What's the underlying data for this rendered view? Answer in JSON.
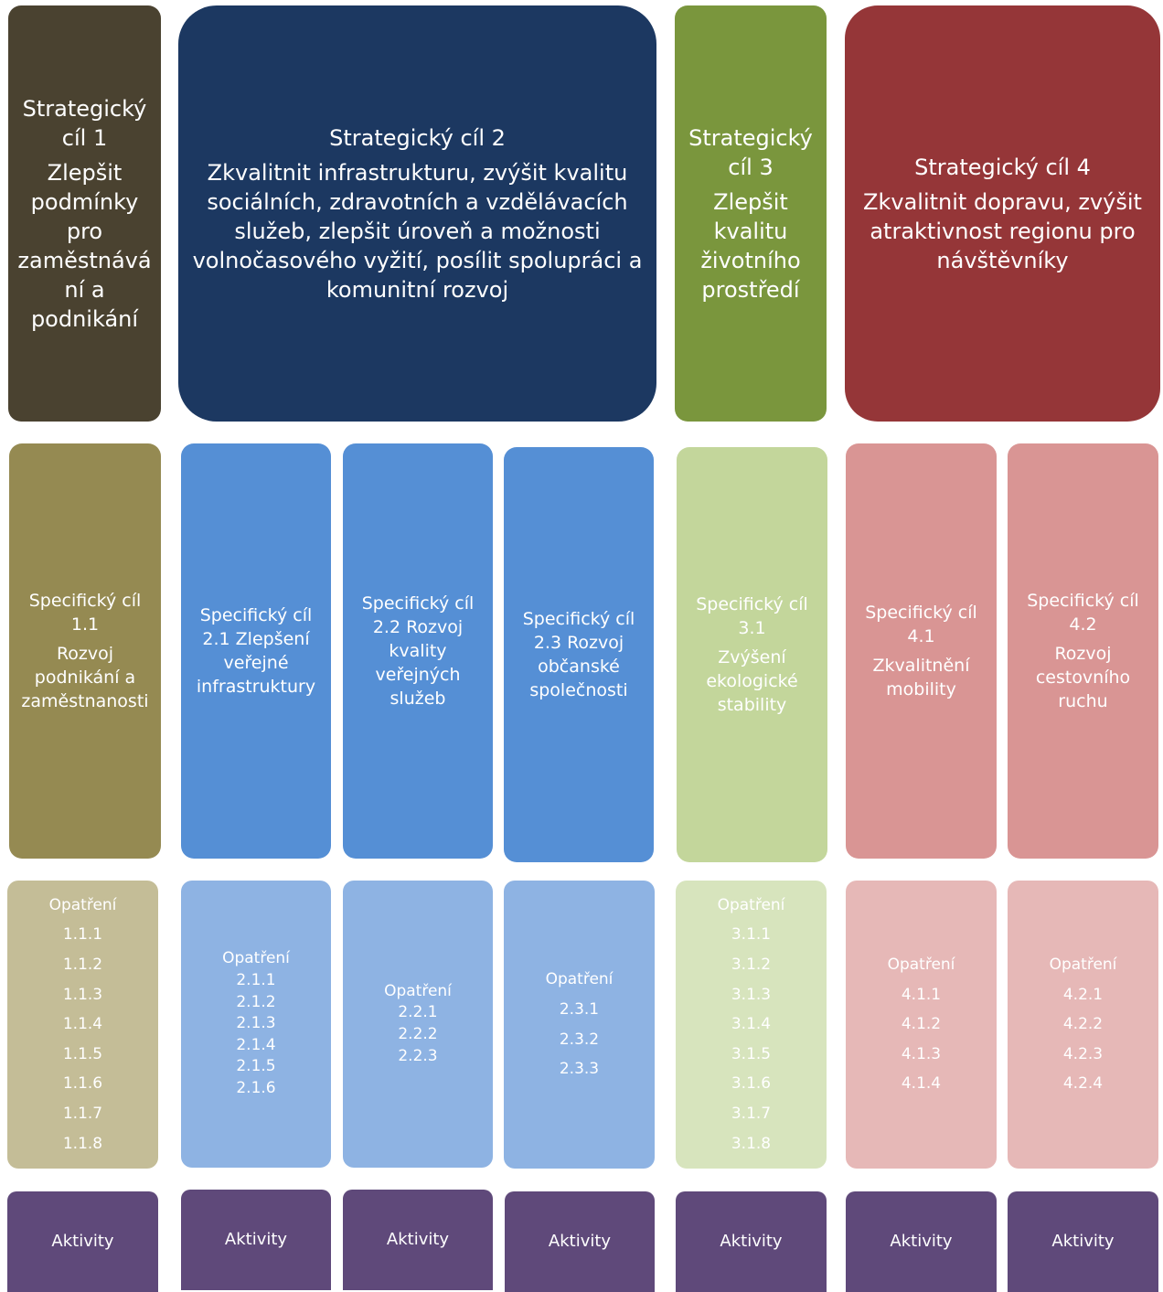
{
  "colors": {
    "strategic": [
      "#4a4230",
      "#1c3861",
      "#7a963d",
      "#953638"
    ],
    "specific": [
      "#958a52",
      "#558fd5",
      "#c3d69b",
      "#d99594"
    ],
    "measures": [
      "#c4bd97",
      "#8eb3e3",
      "#d7e4bd",
      "#e6b8b7"
    ],
    "activities": "#5f497a"
  },
  "strategic": [
    {
      "head": [
        "Strategický",
        "cíl 1"
      ],
      "body": [
        "Zlepšit",
        "podmínky",
        "pro",
        "zaměstnává",
        "ní a",
        "podnikání"
      ]
    },
    {
      "head": [
        "Strategický cíl 2"
      ],
      "body": [
        "Zkvalitnit infrastrukturu, zvýšit kvalitu",
        "sociálních, zdravotních a vzdělávacích",
        "služeb, zlepšit úroveň a možnosti",
        "volnočasového vyžití, posílit spolupráci a",
        "komunitní rozvoj"
      ]
    },
    {
      "head": [
        "Strategický",
        "cíl 3"
      ],
      "body": [
        "Zlepšit",
        "kvalitu",
        "životního",
        "prostředí"
      ]
    },
    {
      "head": [
        "Strategický cíl 4"
      ],
      "body": [
        "Zkvalitnit dopravu, zvýšit",
        "atraktivnost regionu pro",
        "návštěvníky"
      ]
    }
  ],
  "specific": [
    {
      "head": [
        "Specifický cíl",
        "1.1"
      ],
      "body": [
        "Rozvoj",
        "podnikání a",
        "zaměstnanosti"
      ]
    },
    {
      "head": [
        "Specifický cíl",
        "2.1 Zlepšení",
        "veřejné",
        "infrastruktury"
      ],
      "body": []
    },
    {
      "head": [
        "Specifický cíl",
        "2.2 Rozvoj",
        "kvality",
        "veřejných",
        "služeb"
      ],
      "body": []
    },
    {
      "head": [
        "Specifický cíl",
        "2.3 Rozvoj",
        "občanské",
        "společnosti"
      ],
      "body": []
    },
    {
      "head": [
        "Specifický cíl",
        "3.1"
      ],
      "body": [
        "Zvýšení",
        "ekologické",
        "stability"
      ]
    },
    {
      "head": [
        "Specifický cíl",
        "4.1"
      ],
      "body": [
        "Zkvalitnění",
        "mobility"
      ]
    },
    {
      "head": [
        "Specifický cíl",
        "4.2"
      ],
      "body": [
        "Rozvoj",
        "cestovního",
        "ruchu"
      ]
    }
  ],
  "measures": [
    {
      "head": "Opatření",
      "items": [
        "1.1.1",
        "1.1.2",
        "1.1.3",
        "1.1.4",
        "1.1.5",
        "1.1.6",
        "1.1.7",
        "1.1.8"
      ]
    },
    {
      "head": "Opatření",
      "items": [
        "2.1.1",
        "2.1.2",
        "2.1.3",
        "2.1.4",
        "2.1.5",
        "2.1.6"
      ]
    },
    {
      "head": "Opatření",
      "items": [
        "2.2.1",
        "2.2.2",
        "2.2.3"
      ]
    },
    {
      "head": "Opatření",
      "items": [
        "2.3.1",
        "2.3.2",
        "2.3.3"
      ]
    },
    {
      "head": "Opatření",
      "items": [
        "3.1.1",
        "3.1.2",
        "3.1.3",
        "3.1.4",
        "3.1.5",
        "3.1.6",
        "3.1.7",
        "3.1.8"
      ]
    },
    {
      "head": "Opatření",
      "items": [
        "4.1.1",
        "4.1.2",
        "4.1.3",
        "4.1.4"
      ]
    },
    {
      "head": "Opatření",
      "items": [
        "4.2.1",
        "4.2.2",
        "4.2.3",
        "4.2.4"
      ]
    }
  ],
  "activities": [
    "Aktivity",
    "Aktivity",
    "Aktivity",
    "Aktivity",
    "Aktivity",
    "Aktivity",
    "Aktivity"
  ]
}
